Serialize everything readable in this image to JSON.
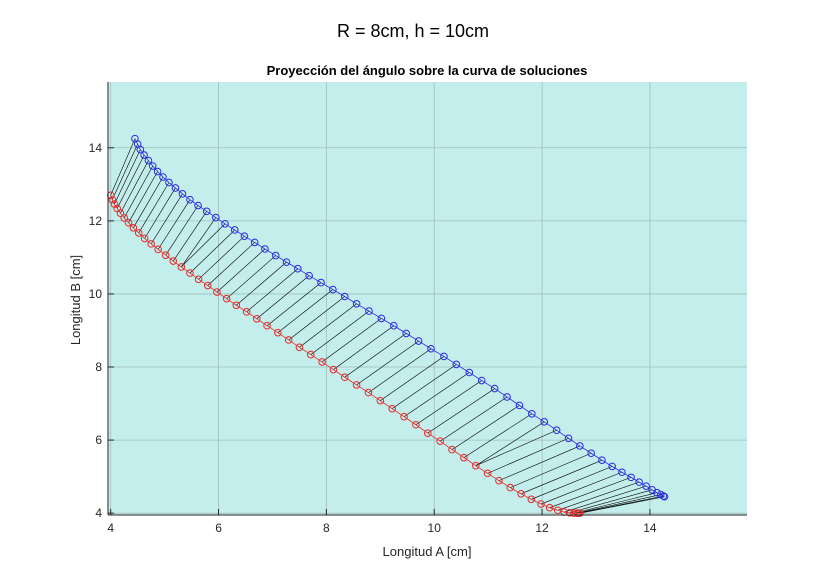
{
  "suptitle": "R = 8cm, h = 10cm",
  "chart_data": {
    "type": "scatter",
    "title": "Proyección del ángulo sobre la curva de soluciones",
    "xlabel": "Longitud A [cm]",
    "ylabel": "Longitud B [cm]",
    "xlim": [
      3.95,
      15.8
    ],
    "ylim": [
      3.95,
      15.8
    ],
    "xticks": [
      "4",
      "6",
      "8",
      "10",
      "12",
      "14"
    ],
    "yticks": [
      "4",
      "6",
      "8",
      "10",
      "12",
      "14"
    ],
    "grid": true,
    "background_color": "#c4eeec",
    "series": [
      {
        "marker": "circle",
        "color": "#2a2ae6",
        "x": [
          4.45,
          4.5,
          4.55,
          4.62,
          4.7,
          4.78,
          4.87,
          4.97,
          5.08,
          5.2,
          5.33,
          5.47,
          5.62,
          5.78,
          5.95,
          6.12,
          6.3,
          6.48,
          6.67,
          6.86,
          7.06,
          7.26,
          7.47,
          7.68,
          7.9,
          8.12,
          8.34,
          8.56,
          8.79,
          9.02,
          9.25,
          9.48,
          9.71,
          9.94,
          10.18,
          10.41,
          10.65,
          10.88,
          11.12,
          11.35,
          11.58,
          11.81,
          12.04,
          12.27,
          12.49,
          12.7,
          12.91,
          13.11,
          13.3,
          13.48,
          13.65,
          13.8,
          13.93,
          14.04,
          14.13,
          14.2,
          14.25,
          14.27
        ],
        "y": [
          14.25,
          14.1,
          13.95,
          13.8,
          13.65,
          13.5,
          13.35,
          13.2,
          13.05,
          12.9,
          12.74,
          12.58,
          12.42,
          12.26,
          12.09,
          11.92,
          11.75,
          11.58,
          11.41,
          11.23,
          11.05,
          10.87,
          10.69,
          10.5,
          10.31,
          10.12,
          9.93,
          9.73,
          9.53,
          9.33,
          9.13,
          8.92,
          8.71,
          8.5,
          8.29,
          8.07,
          7.85,
          7.63,
          7.41,
          7.18,
          6.95,
          6.72,
          6.5,
          6.27,
          6.05,
          5.84,
          5.64,
          5.45,
          5.28,
          5.12,
          4.98,
          4.85,
          4.74,
          4.64,
          4.56,
          4.51,
          4.47,
          4.45
        ]
      },
      {
        "marker": "circle",
        "color": "#e62a2a",
        "x": [
          4.0,
          4.03,
          4.07,
          4.12,
          4.18,
          4.25,
          4.33,
          4.42,
          4.52,
          4.63,
          4.75,
          4.88,
          5.02,
          5.16,
          5.31,
          5.47,
          5.63,
          5.8,
          5.97,
          6.15,
          6.33,
          6.52,
          6.71,
          6.9,
          7.1,
          7.3,
          7.5,
          7.71,
          7.92,
          8.13,
          8.34,
          8.56,
          8.78,
          9.0,
          9.22,
          9.44,
          9.66,
          9.88,
          10.11,
          10.33,
          10.55,
          10.77,
          10.99,
          11.2,
          11.41,
          11.61,
          11.8,
          11.98,
          12.14,
          12.29,
          12.41,
          12.51,
          12.59,
          12.65,
          12.68,
          12.7
        ],
        "y": [
          12.7,
          12.58,
          12.46,
          12.34,
          12.21,
          12.08,
          11.95,
          11.81,
          11.67,
          11.52,
          11.37,
          11.22,
          11.06,
          10.9,
          10.74,
          10.57,
          10.4,
          10.23,
          10.05,
          9.87,
          9.69,
          9.51,
          9.32,
          9.13,
          8.94,
          8.74,
          8.54,
          8.34,
          8.14,
          7.93,
          7.72,
          7.51,
          7.3,
          7.08,
          6.86,
          6.64,
          6.42,
          6.19,
          5.97,
          5.74,
          5.52,
          5.3,
          5.09,
          4.89,
          4.7,
          4.53,
          4.38,
          4.25,
          4.15,
          4.08,
          4.03,
          4.01,
          4.0,
          4.0,
          4.0,
          4.0
        ]
      }
    ]
  }
}
